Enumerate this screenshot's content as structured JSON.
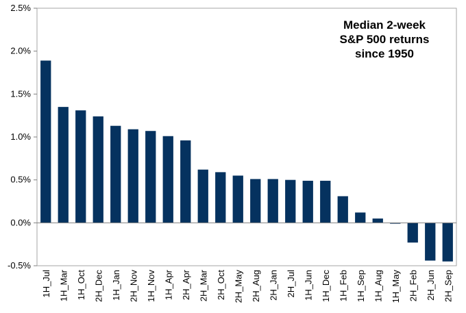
{
  "chart_data": {
    "type": "bar",
    "title": [
      "Median 2-week",
      "S&P 500 returns",
      "since 1950"
    ],
    "xlabel": "",
    "ylabel": "",
    "ylim": [
      -0.5,
      2.5
    ],
    "yticks": [
      "2.5%",
      "2.0%",
      "1.5%",
      "1.0%",
      "0.5%",
      "0.0%",
      "-0.5%"
    ],
    "grid": false,
    "legend": "none",
    "bar_color": "#05325f",
    "categories": [
      "1H_Jul",
      "1H_Mar",
      "1H_Oct",
      "2H_Dec",
      "1H_Jan",
      "2H_Nov",
      "1H_Nov",
      "1H_Apr",
      "2H_Apr",
      "2H_Mar",
      "2H_Oct",
      "2H_May",
      "2H_Aug",
      "2H_Jan",
      "2H_Jul",
      "1H_Jun",
      "1H_Dec",
      "1H_Feb",
      "1H_Sep",
      "1H_Aug",
      "1H_May",
      "2H_Feb",
      "2H_Jun",
      "2H_Sep"
    ],
    "values": [
      1.89,
      1.35,
      1.31,
      1.24,
      1.13,
      1.09,
      1.07,
      1.01,
      0.96,
      0.62,
      0.59,
      0.55,
      0.51,
      0.51,
      0.5,
      0.49,
      0.49,
      0.31,
      0.12,
      0.05,
      -0.01,
      -0.23,
      -0.44,
      -0.45
    ]
  }
}
